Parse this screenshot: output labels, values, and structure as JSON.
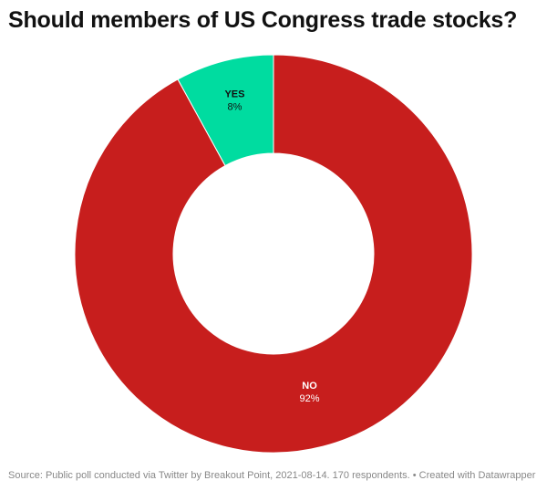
{
  "chart_data": {
    "type": "pie",
    "variant": "donut",
    "title": "Should members of US Congress trade stocks?",
    "categories": [
      "YES",
      "NO"
    ],
    "values": [
      8,
      92
    ],
    "value_labels": [
      "8%",
      "92%"
    ],
    "colors": [
      "#00dca0",
      "#c71e1d"
    ]
  },
  "footer": {
    "source": "Source: Public poll conducted via Twitter by Breakout Point, 2021-08-14. 170 respondents. • Created with Datawrapper"
  }
}
